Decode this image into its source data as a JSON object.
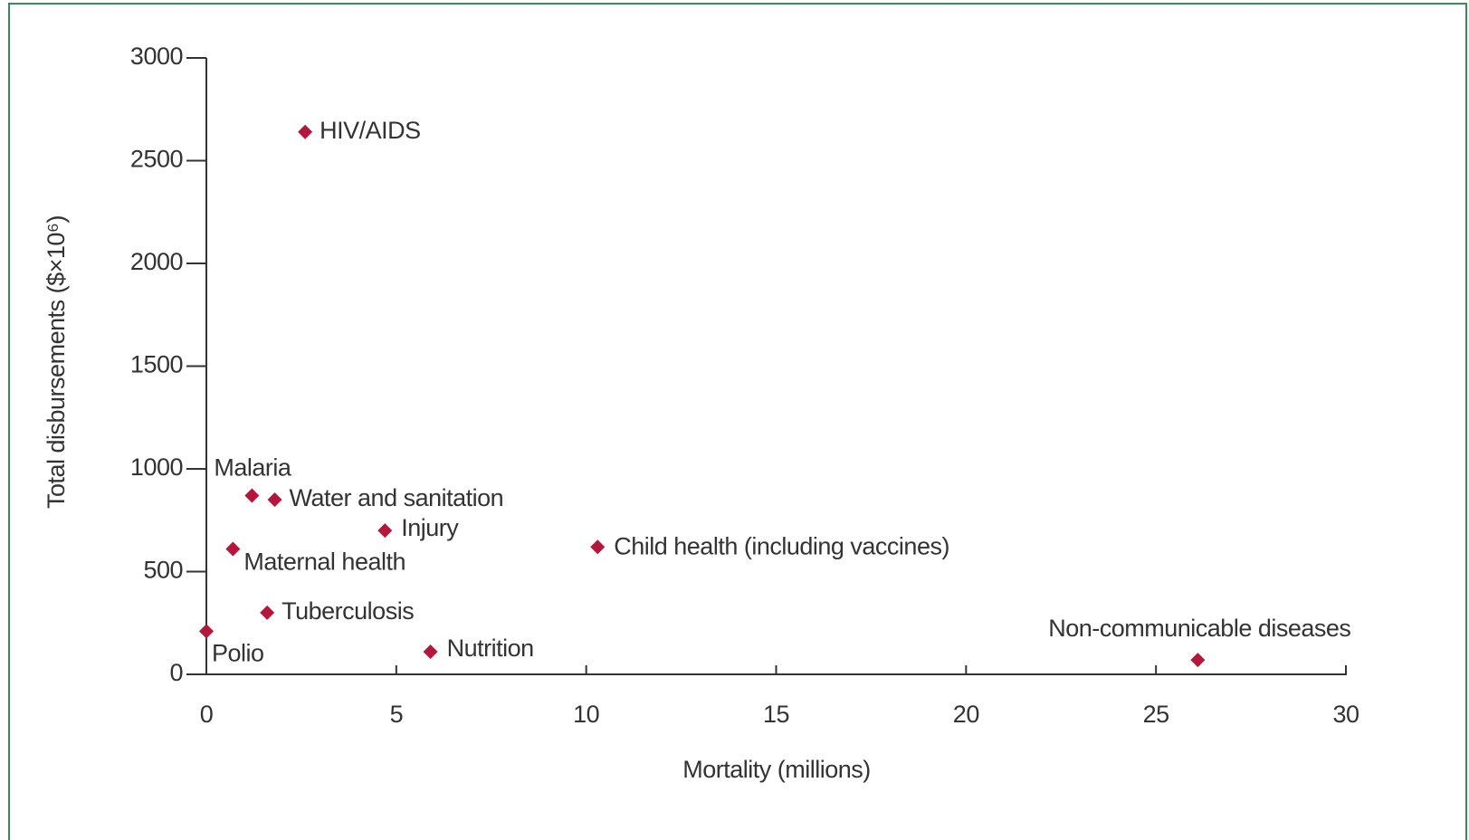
{
  "chart_data": {
    "type": "scatter",
    "xlabel": "Mortality (millions)",
    "ylabel": "Total disbursements ($×10⁶)",
    "color": "#b5163b",
    "labels": [
      "HIV/AIDS",
      "Malaria",
      "Water and sanitation",
      "Injury",
      "Maternal health",
      "Child health (including vaccines)",
      "Tuberculosis",
      "Polio",
      "Nutrition",
      "Non-communicable diseases"
    ],
    "x": [
      2.6,
      1.2,
      1.8,
      4.7,
      0.7,
      10.3,
      1.6,
      0,
      5.9,
      26.1
    ],
    "values": [
      2640,
      870,
      850,
      700,
      610,
      620,
      300,
      210,
      110,
      70
    ],
    "xlim": [
      0,
      30
    ],
    "xticks": [
      0,
      5,
      10,
      15,
      20,
      25,
      30
    ],
    "ylim": [
      0,
      3000
    ],
    "yticks": [
      0,
      500,
      1000,
      1500,
      2000,
      2500,
      3000
    ]
  }
}
